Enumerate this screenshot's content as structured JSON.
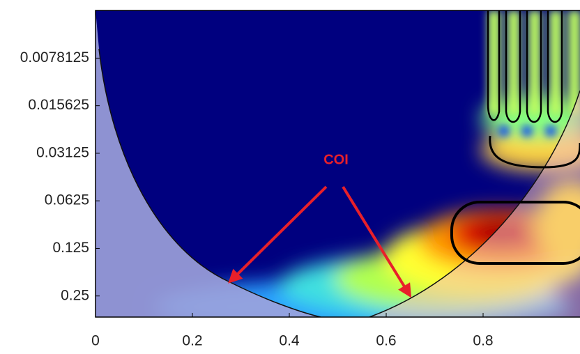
{
  "chart_data": {
    "type": "heatmap",
    "annotations": [
      "COI"
    ],
    "xlim": [
      0,
      1
    ],
    "xticks": [
      0,
      0.2,
      0.4,
      0.6,
      0.8
    ],
    "ylim": [
      0.0039,
      0.34
    ],
    "yticks": [
      0.0078125,
      0.015625,
      0.03125,
      0.0625,
      0.125,
      0.25
    ],
    "y_log_scale": true,
    "y_inverted": true,
    "annotation_color": "#e8202a"
  }
}
